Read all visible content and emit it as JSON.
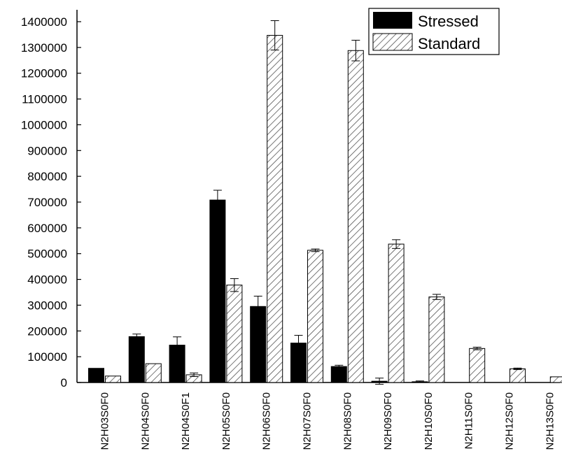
{
  "chart_data": {
    "type": "bar",
    "title": "",
    "xlabel": "",
    "ylabel": "",
    "categories": [
      "N2H03S0F0",
      "N2H04S0F0",
      "N2H04S0F1",
      "N2H05S0F0",
      "N2H06S0F0",
      "N2H07S0F0",
      "N2H08S0F0",
      "N2H09S0F0",
      "N2H10S0F0",
      "N2H11S0F0",
      "N2H12S0F0",
      "N2H13S0F0"
    ],
    "series": [
      {
        "name": "Stressed",
        "fill": "solid",
        "color": "#000000",
        "values": [
          55000,
          178000,
          145000,
          708000,
          295000,
          153000,
          62000,
          5000,
          3000,
          0,
          0,
          0
        ],
        "errors": [
          0,
          10000,
          32000,
          38000,
          40000,
          30000,
          5000,
          12000,
          3000,
          0,
          0,
          0
        ]
      },
      {
        "name": "Standard",
        "fill": "hatched",
        "color": "#000000",
        "values": [
          25000,
          73000,
          30000,
          378000,
          1347000,
          513000,
          1288000,
          537000,
          332000,
          132000,
          53000,
          22000
        ],
        "errors": [
          0,
          0,
          7000,
          25000,
          57000,
          5000,
          40000,
          17000,
          10000,
          5000,
          3000,
          0
        ]
      }
    ],
    "ylim": [
      0,
      1400000
    ],
    "yticks": [
      "0",
      "100000",
      "200000",
      "300000",
      "400000",
      "500000",
      "600000",
      "700000",
      "800000",
      "900000",
      "1000000",
      "1100000",
      "1200000",
      "1300000",
      "1400000"
    ],
    "ytick_values": [
      0,
      100000,
      200000,
      300000,
      400000,
      500000,
      600000,
      700000,
      800000,
      900000,
      1000000,
      1100000,
      1200000,
      1300000,
      1400000
    ],
    "legend": {
      "position": "top-right",
      "entries": [
        "Stressed",
        "Standard"
      ]
    },
    "grid": false
  }
}
